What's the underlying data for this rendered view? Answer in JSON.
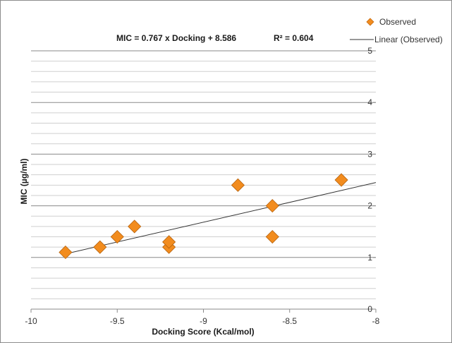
{
  "chart_data": {
    "type": "scatter",
    "xlabel": "Docking Score (Kcal/mol)",
    "ylabel": "MIC (µg/ml)",
    "xlim": [
      -10,
      -8
    ],
    "ylim": [
      0,
      5
    ],
    "x_ticks": [
      -10,
      -9.5,
      -9,
      -8.5,
      -8
    ],
    "x_tick_labels": [
      "-10",
      "-9.5",
      "-9",
      "-8.5",
      "-8"
    ],
    "y_ticks": [
      0,
      1,
      2,
      3,
      4,
      5
    ],
    "y_tick_labels": [
      "0",
      "1",
      "2",
      "3",
      "4",
      "5"
    ],
    "minor_y_step": 0.2,
    "grid": true,
    "legend_position": "top-right",
    "annotations": {
      "equation": "MIC = 0.767 x Docking + 8.586",
      "r_squared": "R² = 0.604"
    },
    "series": [
      {
        "name": "Observed",
        "kind": "scatter",
        "marker": "diamond",
        "color": "#f28c1e",
        "points": [
          {
            "x": -9.8,
            "y": 1.1
          },
          {
            "x": -9.6,
            "y": 1.2
          },
          {
            "x": -9.5,
            "y": 1.4
          },
          {
            "x": -9.4,
            "y": 1.6
          },
          {
            "x": -9.2,
            "y": 1.2
          },
          {
            "x": -9.2,
            "y": 1.3
          },
          {
            "x": -8.8,
            "y": 2.4
          },
          {
            "x": -8.6,
            "y": 2.0
          },
          {
            "x": -8.6,
            "y": 1.4
          },
          {
            "x": -8.2,
            "y": 2.5
          }
        ]
      },
      {
        "name": "Linear (Observed)",
        "kind": "line",
        "color": "#333333",
        "slope": 0.767,
        "intercept": 8.586,
        "x_range": [
          -9.8,
          -8
        ]
      }
    ]
  }
}
